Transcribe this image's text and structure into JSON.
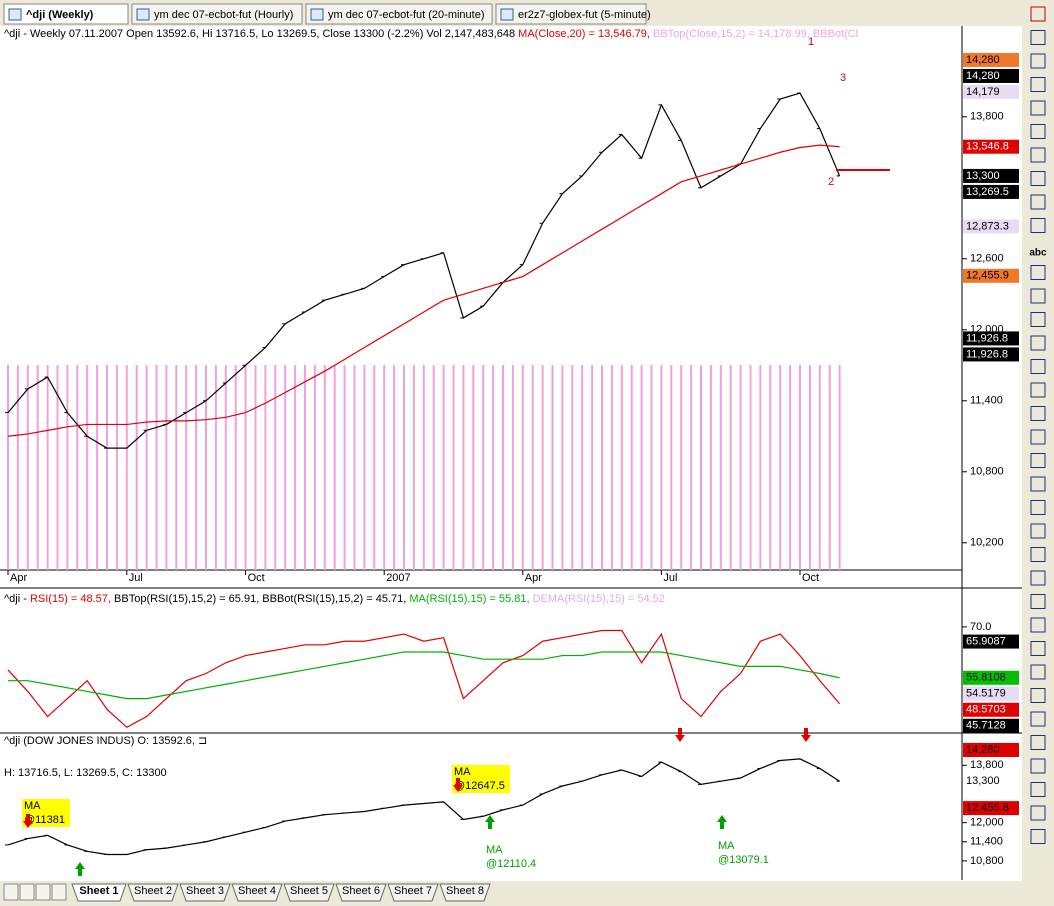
{
  "tabs": [
    "^dji (Weekly)",
    "ym   dec 07-ecbot-fut (Hourly)",
    "ym   dec 07-ecbot-fut (20-minute)",
    "er2z7-globex-fut (5-minute)"
  ],
  "toolbar_text": "abc",
  "sheets": [
    "Sheet 1",
    "Sheet 2",
    "Sheet 3",
    "Sheet 4",
    "Sheet 5",
    "Sheet 6",
    "Sheet 7",
    "Sheet 8"
  ],
  "chart_data": [
    {
      "type": "line",
      "header": [
        {
          "text": "^dji - Weekly 07.11.2007 Open 13592.6, Hi 13716.5, Lo 13269.5, Close 13300 (-2.2%) Vol 2,147,483,648 ",
          "color": "#000000"
        },
        {
          "text": "MA(Close,20) = 13,546.79, ",
          "color": "#e00000"
        },
        {
          "text": "BBTop(Close,15,2) = 14,178.99, BBBot(Cl",
          "color": "#e8a8e0"
        }
      ],
      "annotations": [
        "1",
        "2",
        "3"
      ],
      "categories": [
        "Apr",
        null,
        null,
        null,
        null,
        null,
        "Jul",
        null,
        null,
        null,
        null,
        null,
        "Oct",
        null,
        null,
        null,
        null,
        null,
        null,
        "2007",
        null,
        null,
        null,
        null,
        null,
        null,
        "Apr",
        null,
        null,
        null,
        null,
        null,
        null,
        "Jul",
        null,
        null,
        null,
        null,
        null,
        null,
        "Oct",
        null,
        null
      ],
      "series": [
        {
          "name": "Close",
          "color": "#000000",
          "values": [
            11300,
            11500,
            11600,
            11300,
            11100,
            11000,
            11000,
            11150,
            11200,
            11300,
            11400,
            11550,
            11700,
            11850,
            12050,
            12150,
            12250,
            12300,
            12350,
            12450,
            12550,
            12600,
            12650,
            12100,
            12200,
            12400,
            12550,
            12900,
            13150,
            13300,
            13500,
            13650,
            13450,
            13900,
            13600,
            13200,
            13300,
            13400,
            13700,
            13950,
            14000,
            13700,
            13300
          ]
        },
        {
          "name": "MA(Close,20)",
          "color": "#e00000",
          "values": [
            11100,
            11120,
            11150,
            11180,
            11200,
            11200,
            11200,
            11220,
            11230,
            11230,
            11240,
            11260,
            11300,
            11380,
            11470,
            11560,
            11650,
            11750,
            11850,
            11950,
            12050,
            12150,
            12250,
            12300,
            12350,
            12400,
            12450,
            12550,
            12650,
            12750,
            12850,
            12950,
            13050,
            13150,
            13250,
            13300,
            13350,
            13400,
            13450,
            13500,
            13540,
            13560,
            13546.79
          ]
        }
      ],
      "ylim": [
        9970,
        14550
      ],
      "yticks": [
        {
          "value": 10200,
          "label": "10,200"
        },
        {
          "value": 10800,
          "label": "10,800"
        },
        {
          "value": 11400,
          "label": "11,400"
        },
        {
          "value": 12000,
          "label": "12,000"
        },
        {
          "value": 12600,
          "label": "12,600"
        },
        {
          "value": 13800,
          "label": "13,800"
        }
      ],
      "price_labels": [
        {
          "value": 14280,
          "label": "14,280",
          "bg": "#f07828",
          "fg": "#000000"
        },
        {
          "value": 14280,
          "label": "14,280",
          "bg": "#000000",
          "fg": "#ffffff"
        },
        {
          "value": 14179,
          "label": "14,179",
          "bg": "#e8dcf4",
          "fg": "#000000"
        },
        {
          "value": 13546.8,
          "label": "13,546.8",
          "bg": "#e00000",
          "fg": "#ffffff"
        },
        {
          "value": 13300,
          "label": "13,300",
          "bg": "#000000",
          "fg": "#ffffff"
        },
        {
          "value": 13269.5,
          "label": "13,269.5",
          "bg": "#000000",
          "fg": "#ffffff"
        },
        {
          "value": 12873.3,
          "label": "12,873.3",
          "bg": "#e8dcf4",
          "fg": "#000000"
        },
        {
          "value": 12455.9,
          "label": "12,455.9",
          "bg": "#f07828",
          "fg": "#000000"
        },
        {
          "value": 11926.8,
          "label": "11,926.8",
          "bg": "#000000",
          "fg": "#ffffff"
        },
        {
          "value": 11926.8,
          "label": "11,926.8",
          "bg": "#000000",
          "fg": "#ffffff"
        }
      ]
    },
    {
      "type": "line",
      "header": [
        {
          "text": "^dji - ",
          "color": "#000000"
        },
        {
          "text": "RSI(15) = 48.57, ",
          "color": "#e00000"
        },
        {
          "text": "BBTop(RSI(15),15,2) = 65.91, BBBot(RSI(15),15,2) = 45.71, ",
          "color": "#000000"
        },
        {
          "text": "MA(RSI(15),15) = 55.81, ",
          "color": "#00b000"
        },
        {
          "text": "DEMA(RSI(15),15) = 54.52",
          "color": "#e8a8e0"
        }
      ],
      "series": [
        {
          "name": "RSI(15)",
          "color": "#e00000",
          "values": [
            58,
            52,
            45,
            50,
            55,
            47,
            42,
            45,
            50,
            55,
            57,
            60,
            62,
            63,
            64,
            65,
            65,
            66,
            66,
            67,
            68,
            66,
            67,
            50,
            55,
            60,
            62,
            66,
            67,
            68,
            69,
            69,
            60,
            68,
            50,
            45,
            52,
            57,
            66,
            68,
            62,
            55,
            48.57
          ]
        },
        {
          "name": "MA(RSI(15),15)",
          "color": "#00b000",
          "values": [
            55,
            55,
            54,
            53,
            52,
            51,
            50,
            50,
            51,
            52,
            53,
            54,
            55,
            56,
            57,
            58,
            59,
            60,
            61,
            62,
            63,
            63,
            63,
            62,
            61,
            61,
            61,
            61,
            62,
            62,
            63,
            63,
            63,
            63,
            62,
            61,
            60,
            59,
            59,
            59,
            58,
            57,
            55.81
          ]
        }
      ],
      "ylim": [
        40.4,
        80.3
      ],
      "yticks": [
        {
          "value": 70,
          "label": "70.0"
        }
      ],
      "price_labels": [
        {
          "value": 65.9087,
          "label": "65.9087",
          "bg": "#000000",
          "fg": "#ffffff"
        },
        {
          "value": 55.8108,
          "label": "55.8108",
          "bg": "#00c000",
          "fg": "#000000"
        },
        {
          "value": 54.5179,
          "label": "54.5179",
          "bg": "#e8dcf4",
          "fg": "#000000"
        },
        {
          "value": 48.5703,
          "label": "48.5703",
          "bg": "#e00000",
          "fg": "#ffffff"
        },
        {
          "value": 45.7128,
          "label": "45.7128",
          "bg": "#000000",
          "fg": "#ffffff"
        }
      ]
    },
    {
      "type": "line",
      "header": [
        {
          "text": "^dji (DOW JONES INDUS) O: 13592.6, ⊐",
          "color": "#000000"
        }
      ],
      "subheader": "H: 13716.5, L: 13269.5, C: 13300",
      "annotations": [
        {
          "title": "MA",
          "text": "@11381"
        },
        {
          "title": "MA",
          "text": "@12647.5"
        },
        {
          "title": "MA",
          "text": "@12110.4"
        },
        {
          "title": "MA",
          "text": "@13079.1"
        }
      ],
      "series": [
        {
          "name": "Close",
          "color": "#000000",
          "values": [
            11300,
            11500,
            11600,
            11300,
            11100,
            11000,
            11000,
            11150,
            11200,
            11300,
            11400,
            11550,
            11700,
            11850,
            12050,
            12150,
            12250,
            12300,
            12350,
            12450,
            12550,
            12600,
            12650,
            12100,
            12200,
            12400,
            12550,
            12900,
            13150,
            13300,
            13500,
            13650,
            13450,
            13900,
            13600,
            13200,
            13300,
            13400,
            13700,
            13950,
            14000,
            13700,
            13300
          ]
        }
      ],
      "ylim": [
        10200,
        14750
      ],
      "yticks": [
        {
          "value": 10800,
          "label": "10,800"
        },
        {
          "value": 11400,
          "label": "11,400"
        },
        {
          "value": 12000,
          "label": "12,000"
        },
        {
          "value": 13800,
          "label": "13,800"
        }
      ],
      "price_labels": [
        {
          "value": 14280,
          "label": "14,280",
          "bg": "#e00000",
          "fg": "#000000"
        },
        {
          "value": 13300,
          "label": "13,300",
          "bg": "#ffffff",
          "fg": "#000000"
        },
        {
          "value": 12455.8,
          "label": "12,455.8",
          "bg": "#e00000",
          "fg": "#000000"
        }
      ]
    }
  ]
}
